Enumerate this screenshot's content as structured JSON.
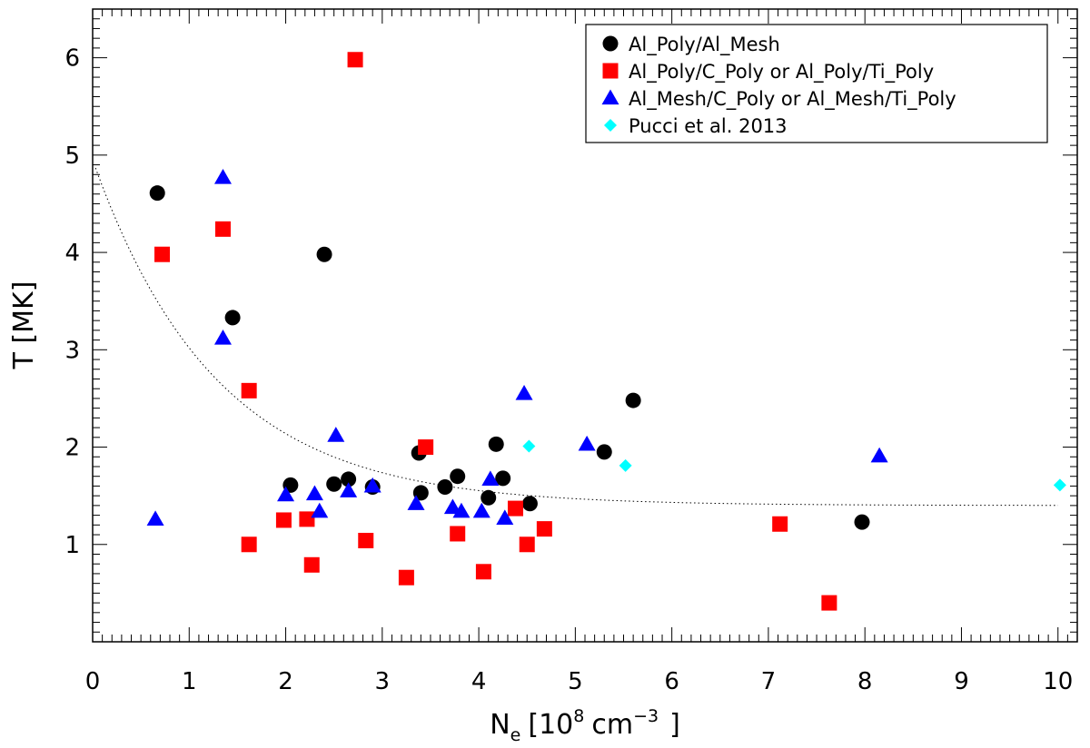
{
  "chart_data": {
    "type": "scatter",
    "xlabel": {
      "main": "N",
      "sub": "e",
      "bracket_open": "[",
      "mant": "10",
      "exp": "8",
      "unit": "cm",
      "unit_exp": "−3",
      "bracket_close": "]"
    },
    "ylabel": "T [MK]",
    "xlim": [
      0,
      10.2
    ],
    "ylim": [
      0,
      6.5
    ],
    "xticks": [
      0,
      1,
      2,
      3,
      4,
      5,
      6,
      7,
      8,
      9,
      10
    ],
    "yticks": [
      1,
      2,
      3,
      4,
      5,
      6
    ],
    "grid": false,
    "legend_position": "top-right",
    "series": [
      {
        "name": "Al_Poly/Al_Mesh",
        "marker": "circle",
        "color": "#000000",
        "points": [
          [
            0.67,
            4.61
          ],
          [
            1.45,
            3.33
          ],
          [
            2.05,
            1.61
          ],
          [
            2.4,
            3.98
          ],
          [
            2.5,
            1.62
          ],
          [
            2.65,
            1.67
          ],
          [
            2.9,
            1.59
          ],
          [
            3.38,
            1.94
          ],
          [
            3.4,
            1.53
          ],
          [
            3.65,
            1.59
          ],
          [
            3.78,
            1.7
          ],
          [
            4.1,
            1.48
          ],
          [
            4.18,
            2.03
          ],
          [
            4.25,
            1.68
          ],
          [
            4.53,
            1.42
          ],
          [
            5.3,
            1.95
          ],
          [
            5.6,
            2.48
          ],
          [
            7.97,
            1.23
          ]
        ]
      },
      {
        "name": "Al_Poly/C_Poly or Al_Poly/Ti_Poly",
        "marker": "square",
        "color": "#ff0000",
        "points": [
          [
            0.72,
            3.98
          ],
          [
            1.35,
            4.24
          ],
          [
            1.62,
            2.58
          ],
          [
            1.62,
            1.0
          ],
          [
            1.98,
            1.25
          ],
          [
            2.22,
            1.26
          ],
          [
            2.27,
            0.79
          ],
          [
            2.72,
            5.98
          ],
          [
            2.83,
            1.04
          ],
          [
            3.25,
            0.66
          ],
          [
            3.45,
            2.0
          ],
          [
            3.78,
            1.11
          ],
          [
            4.05,
            0.72
          ],
          [
            4.38,
            1.37
          ],
          [
            4.5,
            1.0
          ],
          [
            4.68,
            1.16
          ],
          [
            7.12,
            1.21
          ],
          [
            7.63,
            0.4
          ]
        ]
      },
      {
        "name": "Al_Mesh/C_Poly or Al_Mesh/Ti_Poly",
        "marker": "triangle",
        "color": "#0000ff",
        "points": [
          [
            0.65,
            1.26
          ],
          [
            1.35,
            4.77
          ],
          [
            1.35,
            3.12
          ],
          [
            2.0,
            1.51
          ],
          [
            2.3,
            1.52
          ],
          [
            2.35,
            1.34
          ],
          [
            2.52,
            2.12
          ],
          [
            2.65,
            1.55
          ],
          [
            2.9,
            1.6
          ],
          [
            3.35,
            1.42
          ],
          [
            3.73,
            1.38
          ],
          [
            3.82,
            1.34
          ],
          [
            4.03,
            1.34
          ],
          [
            4.12,
            1.67
          ],
          [
            4.27,
            1.27
          ],
          [
            4.47,
            2.55
          ],
          [
            5.12,
            2.03
          ],
          [
            8.15,
            1.91
          ]
        ]
      },
      {
        "name": "Pucci et al. 2013",
        "marker": "diamond",
        "color": "#00ffff",
        "points": [
          [
            4.52,
            2.01
          ],
          [
            5.52,
            1.81
          ],
          [
            10.02,
            1.61
          ]
        ]
      }
    ],
    "fit_curve": {
      "style": "dotted",
      "color": "#000000",
      "a": 3.55,
      "b": 0.785,
      "c": 1.4,
      "x_range": [
        0.03,
        10.0
      ]
    }
  }
}
